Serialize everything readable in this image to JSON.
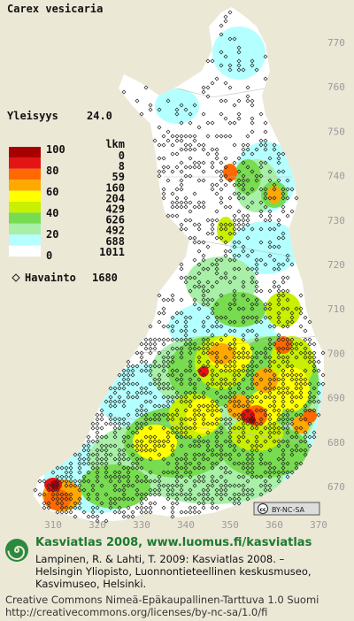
{
  "species": "Carex vesicaria",
  "frequency": {
    "label": "Yleisyys",
    "value": "24.0"
  },
  "legend": {
    "scale_labels": [
      100,
      80,
      60,
      40,
      20,
      0
    ],
    "colors": [
      "#a80000",
      "#e41414",
      "#ff6a00",
      "#ffa800",
      "#ffff00",
      "#c8f000",
      "#78dc50",
      "#a8f0a8",
      "#b4ffff",
      "#ffffff"
    ],
    "count_header": "lkm",
    "counts": [
      0,
      8,
      59,
      160,
      204,
      429,
      626,
      492,
      688,
      1011
    ]
  },
  "observations": {
    "label": "Havainto",
    "count": 1680
  },
  "grid": {
    "northing_labels": [
      770,
      760,
      750,
      740,
      730,
      720,
      710,
      700,
      690,
      680,
      670
    ],
    "easting_labels": [
      310,
      320,
      330,
      340,
      350,
      360,
      370
    ]
  },
  "license_badge": {
    "cc": "cc",
    "text": "BY-NC-SA"
  },
  "footer": {
    "site": "Kasviatlas 2008, www.luomus.fi/kasviatlas",
    "citation_lines": [
      "Lampinen, R. & Lahti, T. 2009: Kasviatlas 2008. –",
      "Helsingin Yliopisto, Luonnontieteellinen keskusmuseo,",
      "Kasvimuseo, Helsinki."
    ],
    "license_lines": [
      "Creative Commons Nimeä-Epäkaupallinen-Tarttuva 1.0 Suomi",
      "http://creativecommons.org/licenses/by-nc-sa/1.0/fi"
    ]
  }
}
